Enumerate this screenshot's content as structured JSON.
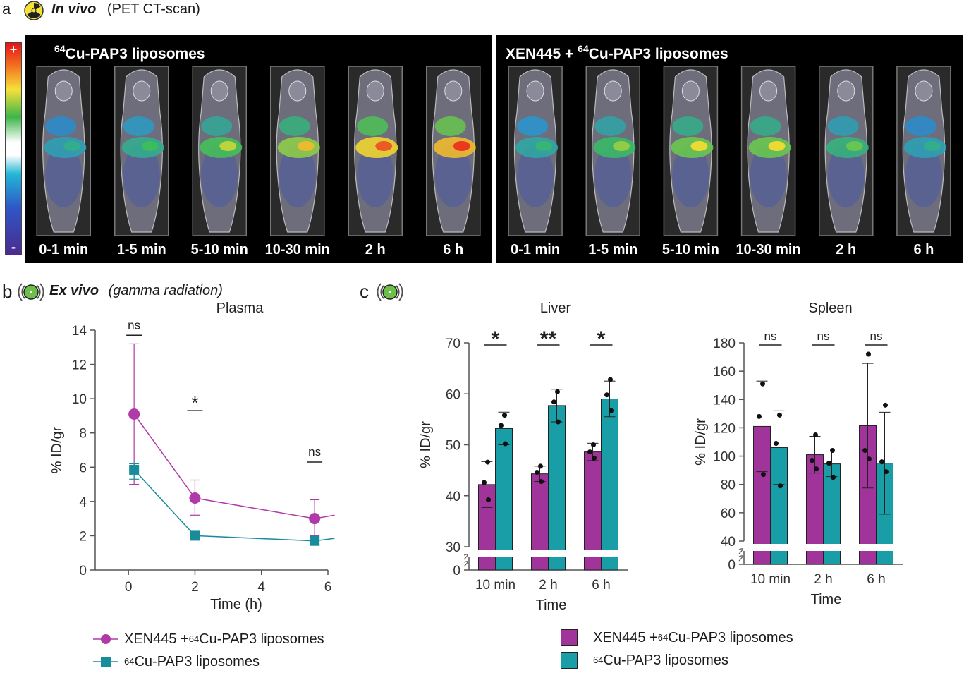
{
  "panel_a": {
    "letter": "a",
    "title_italic": "In vivo",
    "title_rest": "(PET CT-scan)",
    "colorbar": {
      "plus": "+",
      "minus": "-"
    },
    "groups": [
      {
        "title_sup": "64",
        "title_main": "Cu-PAP3 liposomes",
        "title_prefix": "",
        "timepoints": [
          "0-1 min",
          "1-5 min",
          "5-10 min",
          "10-30 min",
          "2 h",
          "6 h"
        ],
        "liver_intensity": [
          0.45,
          0.55,
          0.7,
          0.8,
          0.95,
          1.0
        ]
      },
      {
        "title_prefix": "XEN445 + ",
        "title_sup": "64",
        "title_main": "Cu-PAP3 liposomes",
        "timepoints": [
          "0-1 min",
          "1-5 min",
          "5-10 min",
          "10-30 min",
          "2 h",
          "6 h"
        ],
        "liver_intensity": [
          0.5,
          0.65,
          0.75,
          0.75,
          0.6,
          0.45
        ]
      }
    ]
  },
  "panel_b": {
    "letter": "b",
    "title_italic": "Ex vivo",
    "title_rest": "(gamma radiation)"
  },
  "panel_c": {
    "letter": "c"
  },
  "legend_b": {
    "items": [
      {
        "prefix": "XEN445 + ",
        "sup": "64",
        "main": "Cu-PAP3 liposomes",
        "color": "#b03aa8",
        "marker": "circle"
      },
      {
        "prefix": "",
        "sup": "64",
        "main": "Cu-PAP3 liposomes",
        "color": "#198c9c",
        "marker": "square"
      }
    ]
  },
  "legend_c": {
    "items": [
      {
        "prefix": "XEN445 + ",
        "sup": "64",
        "main": "Cu-PAP3 liposomes",
        "color": "#a0349b"
      },
      {
        "prefix": "",
        "sup": "64",
        "main": "Cu-PAP3 liposomes",
        "color": "#199ea8"
      }
    ]
  },
  "chart_data": [
    {
      "type": "line",
      "title": "Plasma",
      "xlabel": "Time (h)",
      "ylabel": "% ID/gr",
      "xlim": [
        -1,
        6
      ],
      "ylim": [
        0,
        14
      ],
      "xticks": [
        0,
        2,
        4,
        6
      ],
      "yticks": [
        0,
        2,
        4,
        6,
        8,
        10,
        12,
        14
      ],
      "series": [
        {
          "color": "#b03aa8",
          "marker": "circle",
          "x": [
            0.17,
            2,
            5.6
          ],
          "y": [
            9.1,
            4.2,
            3.0
          ],
          "err_low": [
            5.0,
            3.2,
            2.0
          ],
          "err_high": [
            13.2,
            5.25,
            4.1
          ],
          "fit_end": [
            6.2,
            3.2
          ]
        },
        {
          "color": "#198c9c",
          "marker": "square",
          "x": [
            0.17,
            2,
            5.6
          ],
          "y": [
            5.85,
            2.0,
            1.7
          ],
          "err_low": [
            5.3,
            1.8,
            1.5
          ],
          "err_high": [
            6.2,
            2.25,
            1.85
          ],
          "fit_end": [
            6.2,
            1.85
          ]
        }
      ],
      "annotations": [
        {
          "x": 0.17,
          "y": 13.7,
          "text": "ns"
        },
        {
          "x": 2,
          "y": 9.3,
          "text": "*"
        },
        {
          "x": 5.6,
          "y": 6.3,
          "text": "ns"
        }
      ]
    },
    {
      "type": "bar",
      "title": "Liver",
      "xlabel": "Time",
      "ylabel": "% ID/gr",
      "categories": [
        "10 min",
        "2 h",
        "6 h"
      ],
      "ylim": [
        30,
        70
      ],
      "yticks": [
        30,
        40,
        50,
        60,
        70
      ],
      "axis_break": true,
      "lower_tick": 0,
      "series": [
        {
          "color": "#a0349b",
          "values": [
            42.2,
            44.3,
            48.6
          ],
          "err": [
            4.5,
            1.5,
            1.7
          ],
          "points": [
            [
              46.6,
              42.6,
              39.2
            ],
            [
              45.8,
              44.6,
              42.8
            ],
            [
              50.0,
              48.6,
              47.4
            ]
          ]
        },
        {
          "color": "#199ea8",
          "values": [
            53.2,
            57.7,
            59.0
          ],
          "err": [
            3.2,
            3.2,
            3.5
          ],
          "points": [
            [
              55.8,
              53.8,
              50.2
            ],
            [
              60.4,
              58.4,
              54.5
            ],
            [
              62.8,
              59.8,
              56.7
            ]
          ]
        }
      ],
      "annotations": [
        {
          "category": 0,
          "text": "*"
        },
        {
          "category": 1,
          "text": "**"
        },
        {
          "category": 2,
          "text": "*"
        }
      ]
    },
    {
      "type": "bar",
      "title": "Spleen",
      "xlabel": "Time",
      "ylabel": "% ID/gr",
      "categories": [
        "10 min",
        "2 h",
        "6 h"
      ],
      "ylim": [
        40,
        180
      ],
      "yticks": [
        40,
        60,
        80,
        100,
        120,
        140,
        160,
        180
      ],
      "axis_break": true,
      "lower_tick": 0,
      "series": [
        {
          "color": "#a0349b",
          "values": [
            121,
            101,
            121.5
          ],
          "err": [
            32,
            13,
            44
          ],
          "points": [
            [
              151,
              128,
              87
            ],
            [
              115,
              97,
              91
            ],
            [
              172,
              104,
              98
            ]
          ]
        },
        {
          "color": "#199ea8",
          "values": [
            106,
            94.5,
            95
          ],
          "err": [
            26,
            9,
            36
          ],
          "points": [
            [
              129,
              109,
              79
            ],
            [
              104,
              95,
              85
            ],
            [
              136,
              96,
              89
            ]
          ]
        }
      ],
      "annotations": [
        {
          "category": 0,
          "text": "ns"
        },
        {
          "category": 1,
          "text": "ns"
        },
        {
          "category": 2,
          "text": "ns"
        }
      ]
    }
  ]
}
